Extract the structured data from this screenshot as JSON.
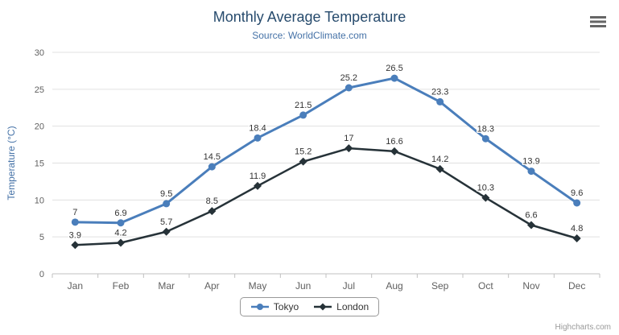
{
  "header": {
    "title": "Monthly Average Temperature",
    "subtitle": "Source: WorldClimate.com"
  },
  "toolbar": {
    "export_menu_icon": "hamburger-icon"
  },
  "credits": "Highcharts.com",
  "chart_data": {
    "type": "line",
    "title": "Monthly Average Temperature",
    "subtitle": "Source: WorldClimate.com",
    "categories": [
      "Jan",
      "Feb",
      "Mar",
      "Apr",
      "May",
      "Jun",
      "Jul",
      "Aug",
      "Sep",
      "Oct",
      "Nov",
      "Dec"
    ],
    "series": [
      {
        "name": "Tokyo",
        "color": "#4a7ebb",
        "marker": "circle",
        "values": [
          7,
          6.9,
          9.5,
          14.5,
          18.4,
          21.5,
          25.2,
          26.5,
          23.3,
          18.3,
          13.9,
          9.6
        ]
      },
      {
        "name": "London",
        "color": "#263238",
        "marker": "diamond",
        "values": [
          3.9,
          4.2,
          5.7,
          8.5,
          11.9,
          15.2,
          17,
          16.6,
          14.2,
          10.3,
          6.6,
          4.8
        ]
      }
    ],
    "xlabel": "",
    "ylabel": "Temperature (°C)",
    "ylim": [
      0,
      30
    ],
    "yticks": [
      0,
      5,
      10,
      15,
      20,
      25,
      30
    ],
    "grid": true,
    "data_labels": true,
    "legend_position": "bottom",
    "colors": {
      "title": "#274b6d",
      "subtitle": "#4572a7",
      "axis_label": "#606060",
      "gridline": "#e0e0e0",
      "axis_line": "#c0c0c0",
      "data_label": "#333333"
    }
  }
}
